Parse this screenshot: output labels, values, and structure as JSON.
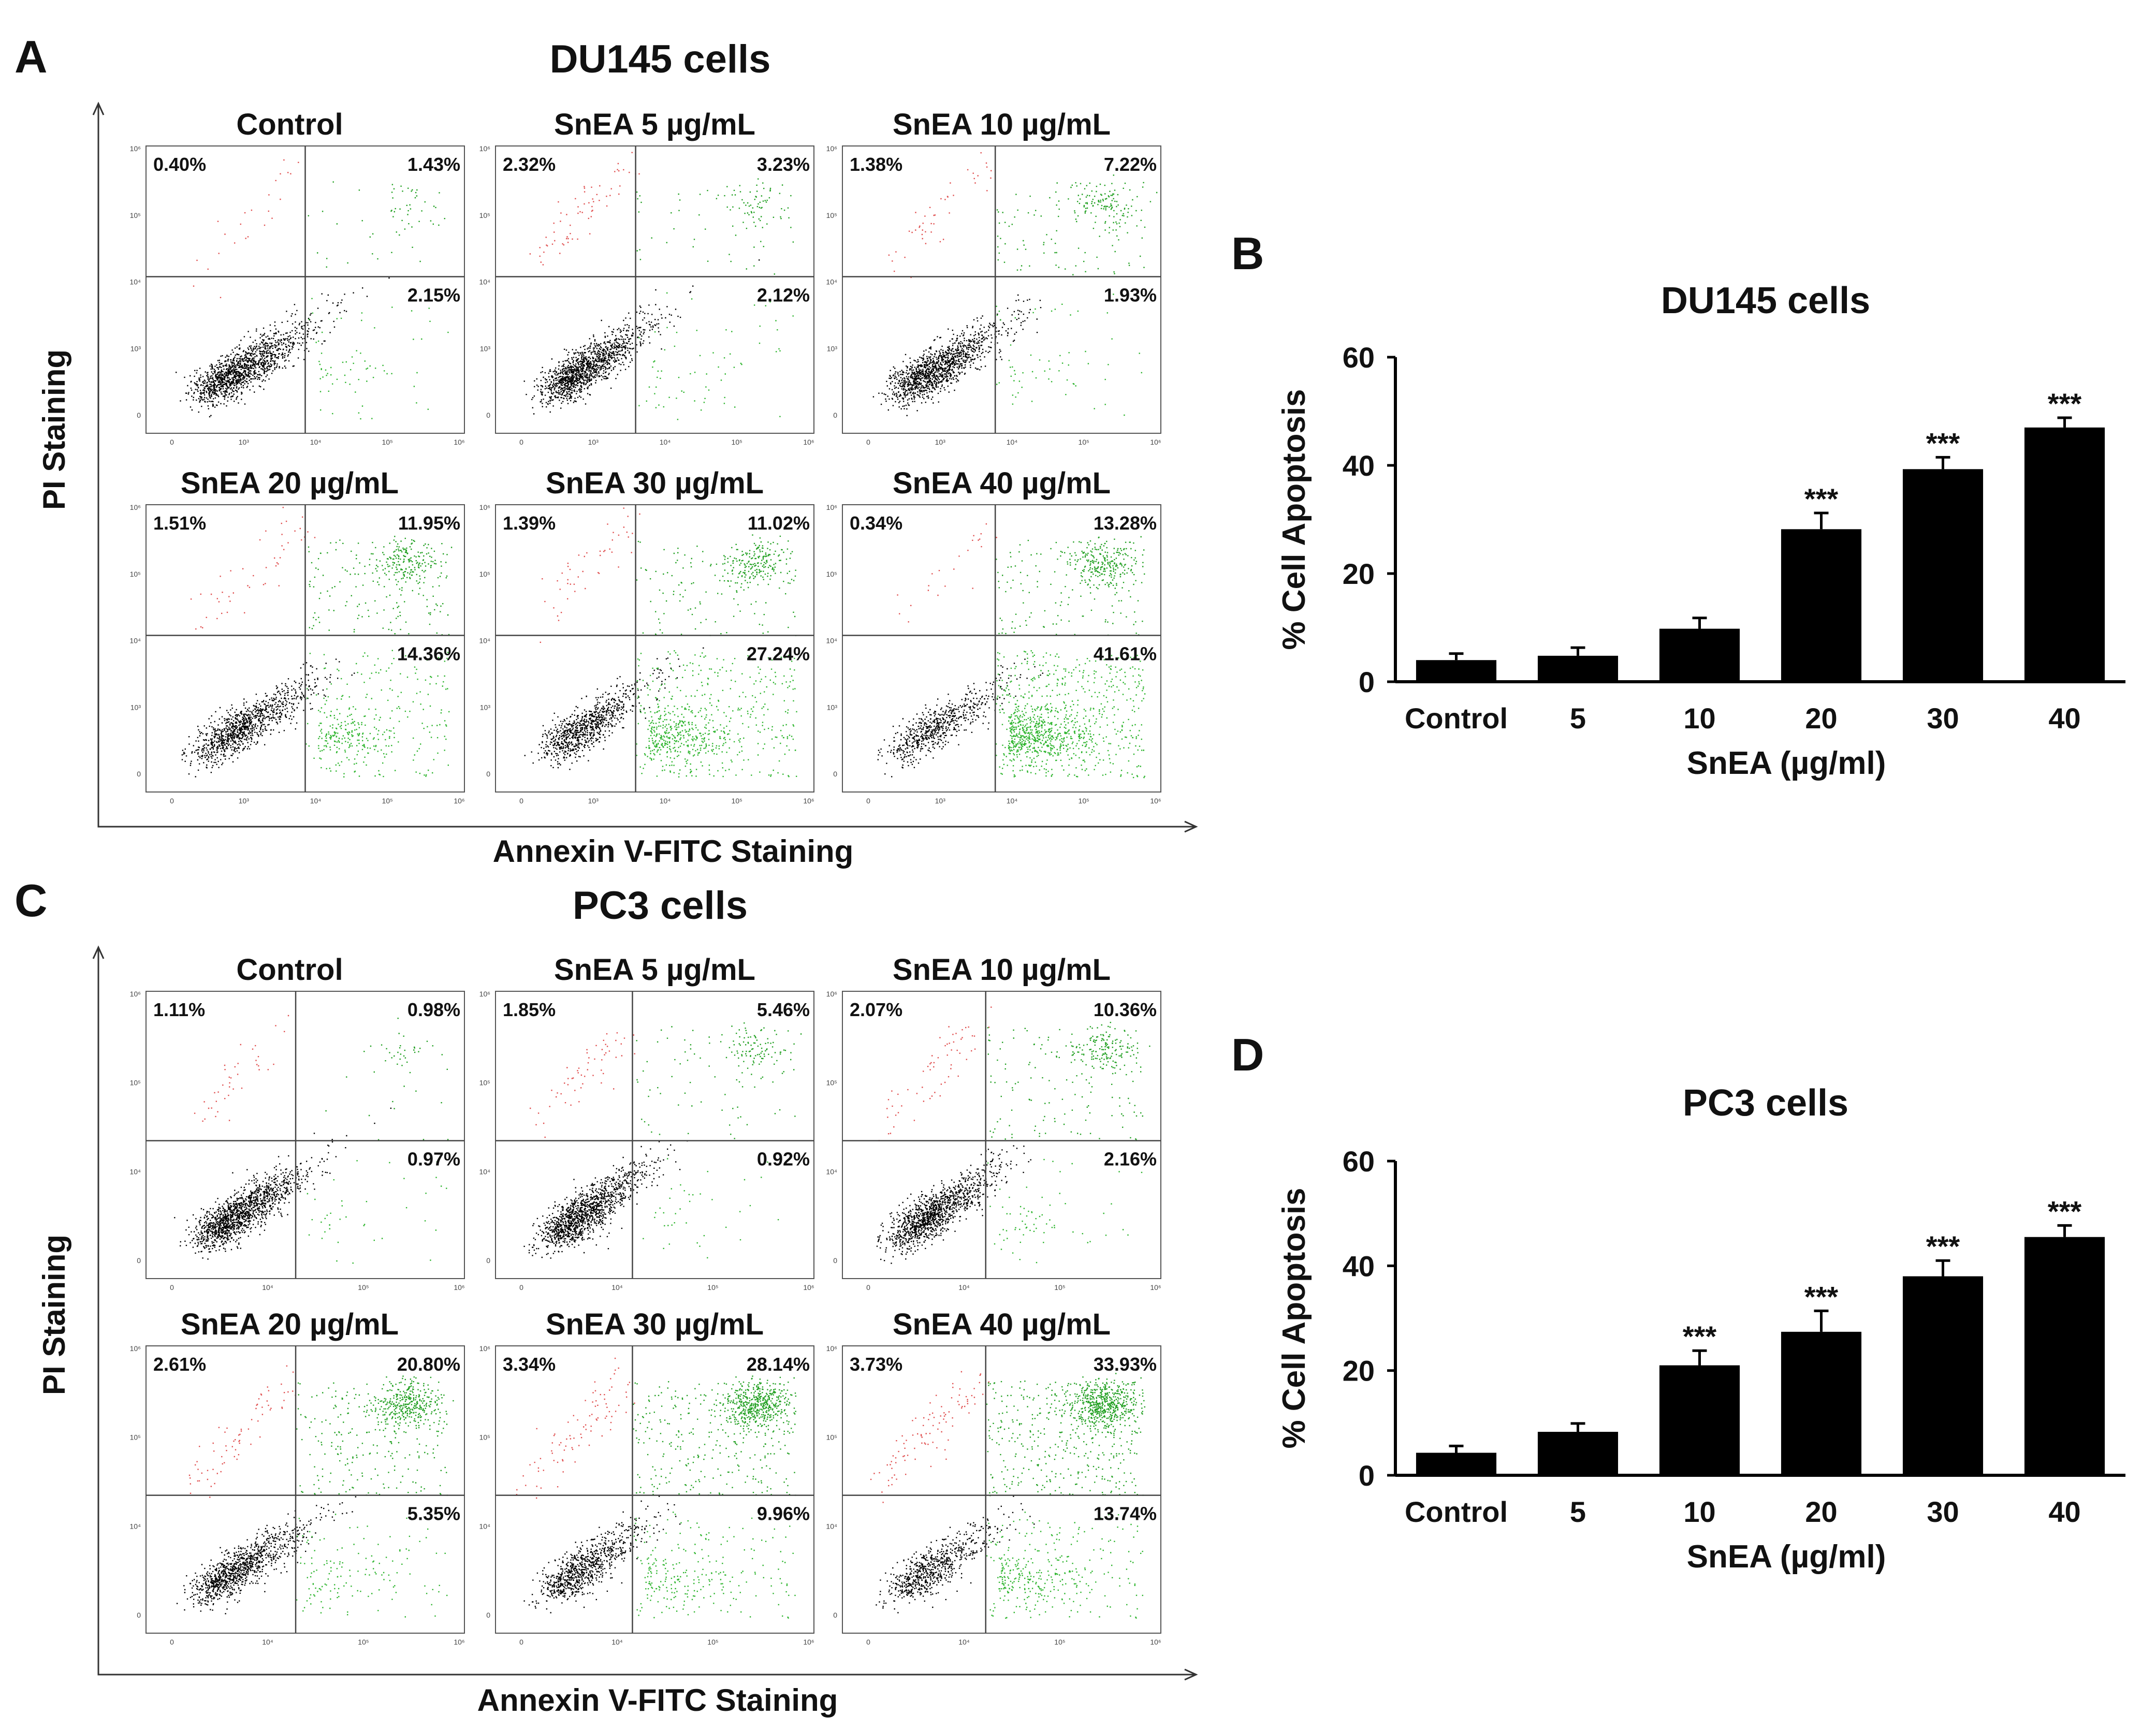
{
  "colors": {
    "background": "#ffffff",
    "bar": "#000000",
    "viable": "#000000",
    "early_apoptotic": "#2fb52f",
    "late_apoptotic": "#22a022",
    "necrotic": "#e05050"
  },
  "figure": {
    "panelA": {
      "letter": "A",
      "title": "DU145 cells",
      "xlabel": "Annexin V-FITC Staining",
      "ylabel": "PI Staining",
      "plots": [
        {
          "title": "Control",
          "ul": "0.40%",
          "ur": "1.43%",
          "lr": "2.15%",
          "density": [
            0.4,
            1.43,
            2.15
          ],
          "ticks": [
            "0",
            "10³",
            "10⁴",
            "10⁵",
            "10⁶"
          ]
        },
        {
          "title": "SnEA 5 µg/mL",
          "ul": "2.32%",
          "ur": "3.23%",
          "lr": "2.12%",
          "density": [
            2.32,
            3.23,
            2.12
          ],
          "ticks": [
            "0",
            "10³",
            "10⁴",
            "10⁵",
            "10⁶"
          ]
        },
        {
          "title": "SnEA 10 µg/mL",
          "ul": "1.38%",
          "ur": "7.22%",
          "lr": "1.93%",
          "density": [
            1.38,
            7.22,
            1.93
          ],
          "ticks": [
            "0",
            "10³",
            "10⁴",
            "10⁵",
            "10⁶"
          ]
        },
        {
          "title": "SnEA 20 µg/mL",
          "ul": "1.51%",
          "ur": "11.95%",
          "lr": "14.36%",
          "density": [
            1.51,
            11.95,
            14.36
          ],
          "ticks": [
            "0",
            "10³",
            "10⁴",
            "10⁵",
            "10⁶"
          ]
        },
        {
          "title": "SnEA 30 µg/mL",
          "ul": "1.39%",
          "ur": "11.02%",
          "lr": "27.24%",
          "density": [
            1.39,
            11.02,
            27.24
          ],
          "ticks": [
            "0",
            "10³",
            "10⁴",
            "10⁵",
            "10⁶"
          ]
        },
        {
          "title": "SnEA 40 µg/mL",
          "ul": "0.34%",
          "ur": "13.28%",
          "lr": "41.61%",
          "density": [
            0.34,
            13.28,
            41.61
          ],
          "ticks": [
            "0",
            "10³",
            "10⁴",
            "10⁵",
            "10⁶"
          ]
        }
      ]
    },
    "panelC": {
      "letter": "C",
      "title": "PC3 cells",
      "xlabel": "Annexin V-FITC Staining",
      "ylabel": "PI Staining",
      "plots": [
        {
          "title": "Control",
          "ul": "1.11%",
          "ur": "0.98%",
          "lr": "0.97%",
          "density": [
            1.11,
            0.98,
            0.97
          ],
          "ticks": [
            "0",
            "10⁴",
            "10⁵",
            "10⁶"
          ]
        },
        {
          "title": "SnEA 5 µg/mL",
          "ul": "1.85%",
          "ur": "5.46%",
          "lr": "0.92%",
          "density": [
            1.85,
            5.46,
            0.92
          ],
          "ticks": [
            "0",
            "10⁴",
            "10⁵",
            "10⁶"
          ]
        },
        {
          "title": "SnEA 10 µg/mL",
          "ul": "2.07%",
          "ur": "10.36%",
          "lr": "2.16%",
          "density": [
            2.07,
            10.36,
            2.16
          ],
          "ticks": [
            "0",
            "10⁴",
            "10⁵",
            "10⁶"
          ]
        },
        {
          "title": "SnEA 20 µg/mL",
          "ul": "2.61%",
          "ur": "20.80%",
          "lr": "5.35%",
          "density": [
            2.61,
            20.8,
            5.35
          ],
          "ticks": [
            "0",
            "10⁴",
            "10⁵",
            "10⁶"
          ]
        },
        {
          "title": "SnEA 30 µg/mL",
          "ul": "3.34%",
          "ur": "28.14%",
          "lr": "9.96%",
          "density": [
            3.34,
            28.14,
            9.96
          ],
          "ticks": [
            "0",
            "10⁴",
            "10⁵",
            "10⁶"
          ]
        },
        {
          "title": "SnEA 40 µg/mL",
          "ul": "3.73%",
          "ur": "33.93%",
          "lr": "13.74%",
          "density": [
            3.73,
            33.93,
            13.74
          ],
          "ticks": [
            "0",
            "10⁴",
            "10⁵",
            "10⁶"
          ]
        }
      ]
    },
    "panelB": {
      "letter": "B"
    },
    "panelD": {
      "letter": "D"
    }
  },
  "chart_data": [
    {
      "type": "bar",
      "id": "B",
      "title": "DU145 cells",
      "xlabel": "SnEA (µg/ml)",
      "ylabel": "% Cell Apoptosis",
      "categories": [
        "Control",
        "5",
        "10",
        "20",
        "30",
        "40"
      ],
      "values": [
        4,
        4.8,
        9.8,
        28.2,
        39.3,
        47
      ],
      "errors": [
        1.2,
        1.5,
        2.0,
        3.0,
        2.2,
        1.8
      ],
      "significance": [
        "",
        "",
        "",
        "***",
        "***",
        "***"
      ],
      "ylim": [
        0,
        60
      ],
      "yticks": [
        "0",
        "20",
        "40",
        "60"
      ]
    },
    {
      "type": "bar",
      "id": "D",
      "title": "PC3 cells",
      "xlabel": "SnEA (µg/ml)",
      "ylabel": "% Cell Apoptosis",
      "categories": [
        "Control",
        "5",
        "10",
        "20",
        "30",
        "40"
      ],
      "values": [
        4.3,
        8.3,
        21,
        27.4,
        38,
        45.5
      ],
      "errors": [
        1.3,
        1.6,
        2.8,
        4.0,
        3.0,
        2.2
      ],
      "significance": [
        "",
        "",
        "***",
        "***",
        "***",
        "***"
      ],
      "ylim": [
        0,
        60
      ],
      "yticks": [
        "0",
        "20",
        "40",
        "60"
      ]
    }
  ]
}
